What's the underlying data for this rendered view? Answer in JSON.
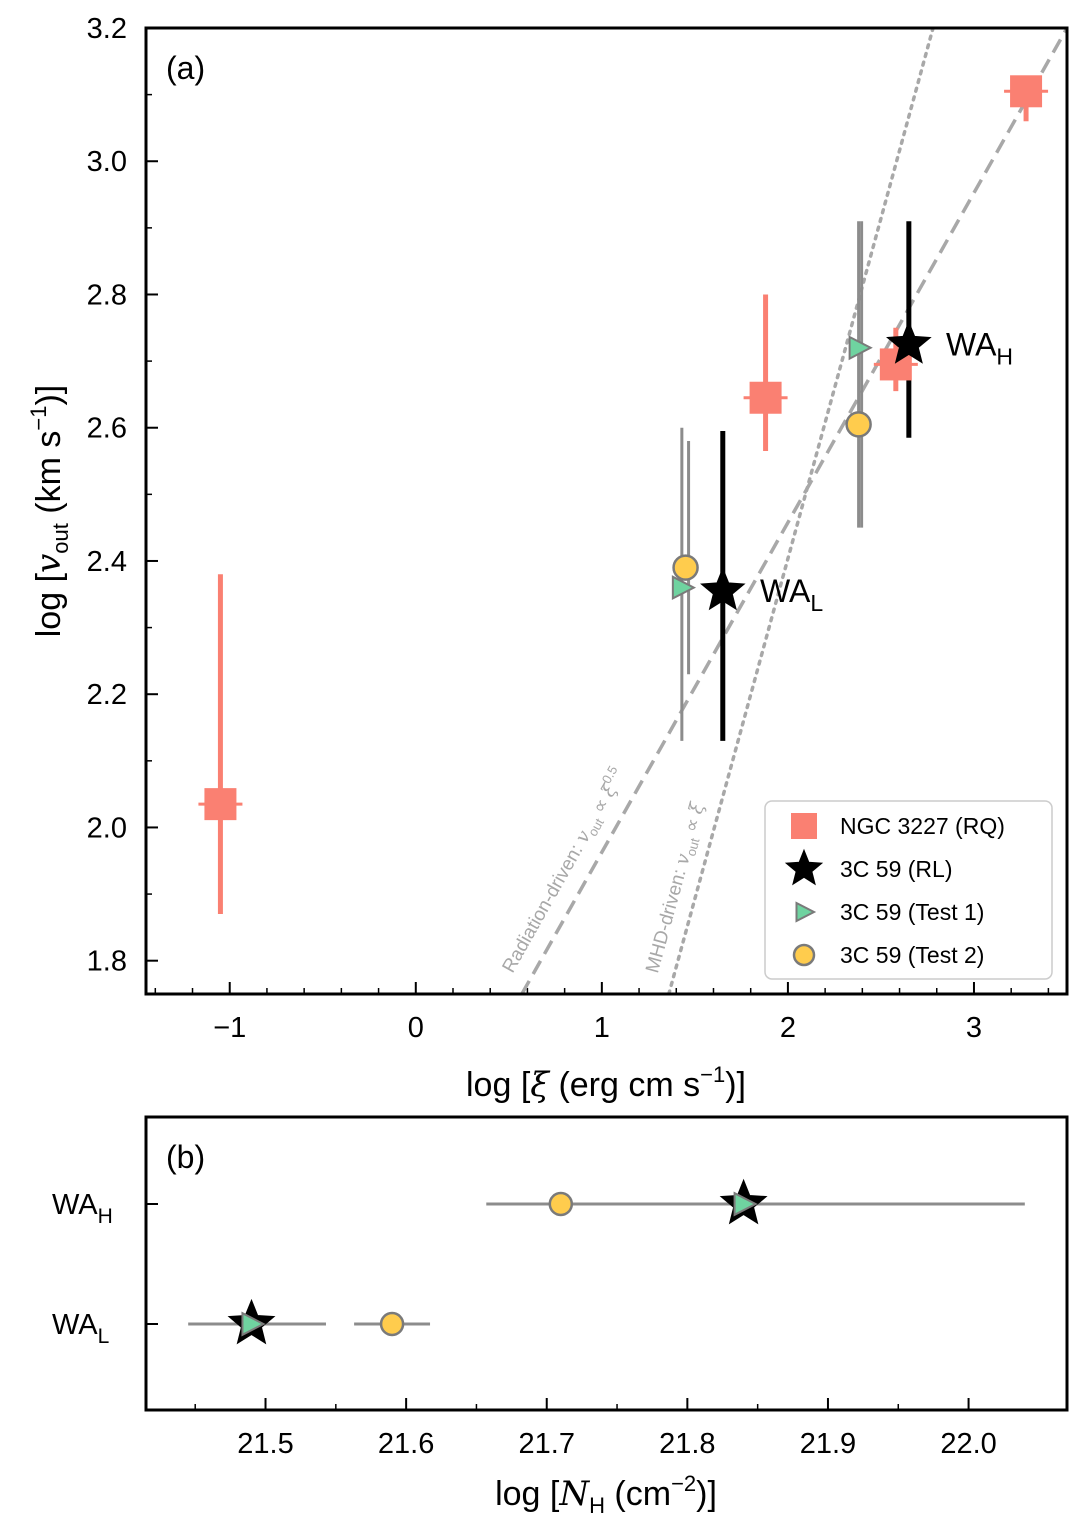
{
  "chart_data": [
    {
      "panel": "(a)",
      "type": "scatter",
      "xlabel_pre": "log [",
      "xlabel_sym": "ξ",
      "xlabel_unit": " (erg cm s",
      "xlabel_exp": "−1",
      "xlabel_post": ")]",
      "ylabel_pre": "log [",
      "ylabel_sym": "v",
      "ylabel_sub": "out",
      "ylabel_unit": " (km s",
      "ylabel_exp": "−1",
      "ylabel_post": ")]",
      "xlim": [
        -1.45,
        3.5
      ],
      "ylim": [
        1.75,
        3.2
      ],
      "xticks": [
        -1,
        0,
        1,
        2,
        3
      ],
      "xtick_labels": [
        "−1",
        "0",
        "1",
        "2",
        "3"
      ],
      "yticks": [
        1.8,
        2.0,
        2.2,
        2.4,
        2.6,
        2.8,
        3.0,
        3.2
      ],
      "ytick_labels": [
        "1.8",
        "2.0",
        "2.2",
        "2.4",
        "2.6",
        "2.8",
        "3.0",
        "3.2"
      ],
      "series": [
        {
          "name": "NGC 3227 (RQ)",
          "marker": "square",
          "color": "#fa8072",
          "points": [
            {
              "x": -1.05,
              "y": 2.035,
              "ylo": 1.87,
              "yhi": 2.38
            },
            {
              "x": 1.88,
              "y": 2.645,
              "ylo": 2.565,
              "yhi": 2.8
            },
            {
              "x": 2.58,
              "y": 2.695,
              "ylo": 2.655,
              "yhi": 2.75
            },
            {
              "x": 3.28,
              "y": 3.105,
              "ylo": 3.06,
              "yhi": 3.11
            }
          ]
        },
        {
          "name": "3C 59 (RL)",
          "marker": "star",
          "color": "#000000",
          "points": [
            {
              "x": 1.65,
              "y": 2.355,
              "ylo": 2.13,
              "yhi": 2.595
            },
            {
              "x": 2.65,
              "y": 2.725,
              "ylo": 2.585,
              "yhi": 2.91
            }
          ]
        },
        {
          "name": "3C 59 (Test 1)",
          "marker": "triangle-right",
          "color": "#6fd3a0",
          "points": [
            {
              "x": 1.43,
              "y": 2.36,
              "ylo": 2.13,
              "yhi": 2.6
            },
            {
              "x": 2.38,
              "y": 2.72,
              "ylo": 2.45,
              "yhi": 2.91
            }
          ]
        },
        {
          "name": "3C 59 (Test 2)",
          "marker": "circle",
          "color": "#ffcc4d",
          "points": [
            {
              "x": 1.45,
              "y": 2.39,
              "ylo": 2.23,
              "yhi": 2.58
            },
            {
              "x": 2.38,
              "y": 2.605,
              "ylo": 2.45,
              "yhi": 2.91
            }
          ]
        }
      ],
      "lines": [
        {
          "name": "Radiation-driven",
          "style": "dashed",
          "color": "#a8a8a8",
          "x": [
            0.57,
            3.5
          ],
          "y": [
            1.75,
            3.2
          ],
          "label_pre": "Radiation-driven: ",
          "label_sym": "v",
          "label_sub": "out",
          "label_mid": " ∝ ",
          "label_sym2": "ξ",
          "label_exp": "0.5"
        },
        {
          "name": "MHD-driven",
          "style": "dotted",
          "color": "#a8a8a8",
          "x": [
            1.36,
            2.78
          ],
          "y": [
            1.75,
            3.2
          ],
          "label_pre": "MHD-driven: ",
          "label_sym": "v",
          "label_sub": "out",
          "label_mid": " ∝ ",
          "label_sym2": "ξ",
          "label_exp": ""
        }
      ],
      "annotations": [
        {
          "text": "WA",
          "sub": "L",
          "x": 1.85,
          "y": 2.355
        },
        {
          "text": "WA",
          "sub": "H",
          "x": 2.85,
          "y": 2.725
        }
      ],
      "legend_position": "lower-right"
    },
    {
      "panel": "(b)",
      "type": "scatter",
      "xlabel_pre": "log [",
      "xlabel_sym": "N",
      "xlabel_sub": "H",
      "xlabel_unit": " (cm",
      "xlabel_exp": "−2",
      "xlabel_post": ")]",
      "xlim": [
        21.415,
        22.07
      ],
      "categories": [
        {
          "text": "WA",
          "sub": "H"
        },
        {
          "text": "WA",
          "sub": "L"
        }
      ],
      "xticks": [
        21.5,
        21.6,
        21.7,
        21.8,
        21.9,
        22.0
      ],
      "xtick_labels": [
        "21.5",
        "21.6",
        "21.7",
        "21.8",
        "21.9",
        "22.0"
      ],
      "series": [
        {
          "name": "3C 59 (RL)",
          "marker": "star",
          "color": "#000000",
          "points": [
            {
              "cat": "WA_H",
              "x": 21.84
            },
            {
              "cat": "WA_L",
              "x": 21.49
            }
          ]
        },
        {
          "name": "3C 59 (Test 1)",
          "marker": "triangle-right",
          "color": "#6fd3a0",
          "points": [
            {
              "cat": "WA_H",
              "x": 21.84,
              "xlo": 21.657,
              "xhi": 22.04
            },
            {
              "cat": "WA_L",
              "x": 21.49,
              "xlo": 21.445,
              "xhi": 21.543
            }
          ]
        },
        {
          "name": "3C 59 (Test 2)",
          "marker": "circle",
          "color": "#ffcc4d",
          "points": [
            {
              "cat": "WA_H",
              "x": 21.71
            },
            {
              "cat": "WA_L",
              "x": 21.59,
              "xlo": 21.563,
              "xhi": 21.617
            }
          ]
        }
      ]
    }
  ]
}
